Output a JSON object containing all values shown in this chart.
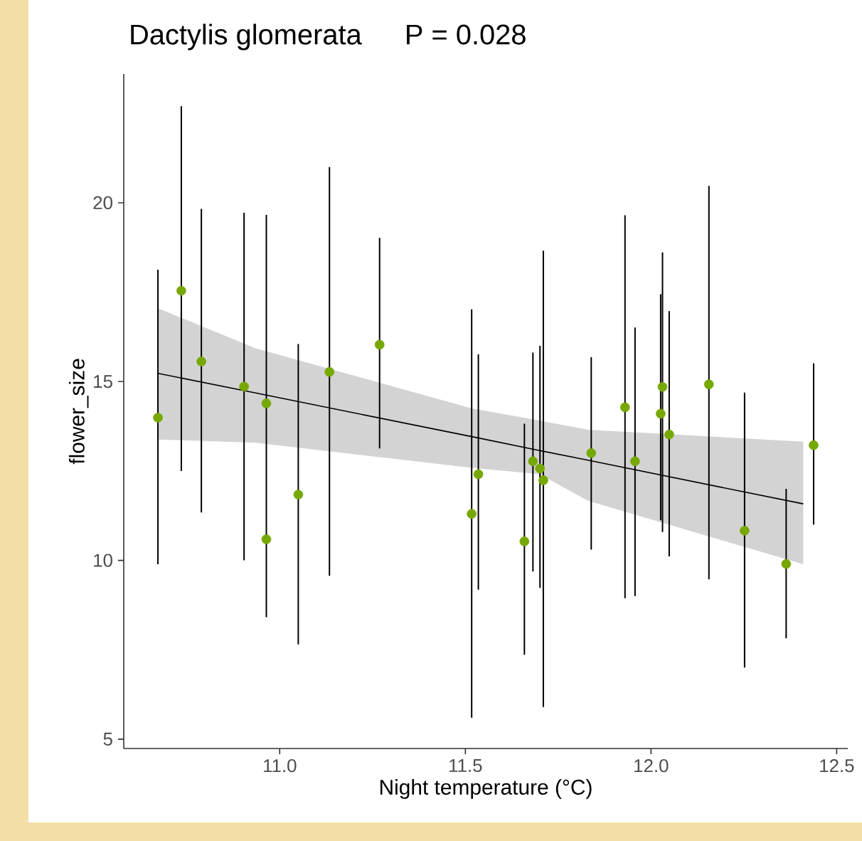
{
  "chart_data": {
    "type": "scatter",
    "title": "Dactylis glomerata",
    "annotations": [
      "P = 0.028"
    ],
    "xlabel": "Night temperature (°C)",
    "ylabel": "flower_size",
    "xlim": [
      10.58,
      12.53
    ],
    "ylim": [
      4.74,
      23.6
    ],
    "xticks": [
      {
        "value": 11,
        "label": "11.0"
      },
      {
        "value": 11.5,
        "label": "11.5"
      },
      {
        "value": 12,
        "label": "12.0"
      },
      {
        "value": 12.5,
        "label": "12.5"
      }
    ],
    "yticks": [
      5,
      10,
      15,
      20
    ],
    "grid": false,
    "series": [
      {
        "type": "line",
        "marker": "none",
        "color": "#000000",
        "x": [
          10.672,
          10.935,
          11.517,
          11.7,
          11.83,
          12.41
        ],
        "values": [
          15.23,
          14.68,
          13.46,
          13.07,
          12.8,
          11.58
        ],
        "lower": [
          13.38,
          13.29,
          12.59,
          12.41,
          11.67,
          9.89
        ],
        "upper": [
          17.05,
          15.93,
          14.25,
          13.91,
          13.65,
          13.32
        ]
      },
      {
        "marker": "circle",
        "color": "#76a800",
        "x": [
          10.672,
          10.735,
          10.789,
          10.904,
          10.964,
          10.964,
          11.05,
          11.134,
          11.269,
          11.517,
          11.535,
          11.659,
          11.682,
          11.701,
          11.71,
          11.839,
          11.93,
          11.957,
          12.026,
          12.031,
          12.049,
          12.156,
          12.252,
          12.364,
          12.438
        ],
        "values": [
          13.99,
          17.54,
          15.56,
          14.86,
          14.39,
          10.59,
          11.84,
          15.27,
          16.03,
          11.3,
          12.41,
          10.53,
          12.77,
          12.57,
          12.24,
          13.0,
          14.28,
          12.77,
          14.1,
          14.85,
          13.52,
          14.92,
          10.83,
          9.9,
          13.22
        ],
        "errors": [
          [
            9.89,
            18.13
          ],
          [
            12.5,
            22.7
          ],
          [
            11.34,
            19.83
          ],
          [
            10.0,
            19.72
          ],
          [
            8.41,
            19.66
          ],
          null,
          [
            7.65,
            16.05
          ],
          [
            9.57,
            21.0
          ],
          [
            13.13,
            19.02
          ],
          [
            5.6,
            17.02
          ],
          [
            9.18,
            15.76
          ],
          [
            7.36,
            13.82
          ],
          [
            9.69,
            15.81
          ],
          [
            9.23,
            16.0
          ],
          [
            5.9,
            18.66
          ],
          [
            10.3,
            15.68
          ],
          [
            8.94,
            19.65
          ],
          [
            9.0,
            16.51
          ],
          [
            11.12,
            17.44
          ],
          [
            10.79,
            18.61
          ],
          [
            10.11,
            16.97
          ],
          [
            9.47,
            20.47
          ],
          [
            7.0,
            14.69
          ],
          [
            7.82,
            12.0
          ],
          [
            11.0,
            15.51
          ]
        ]
      }
    ]
  }
}
